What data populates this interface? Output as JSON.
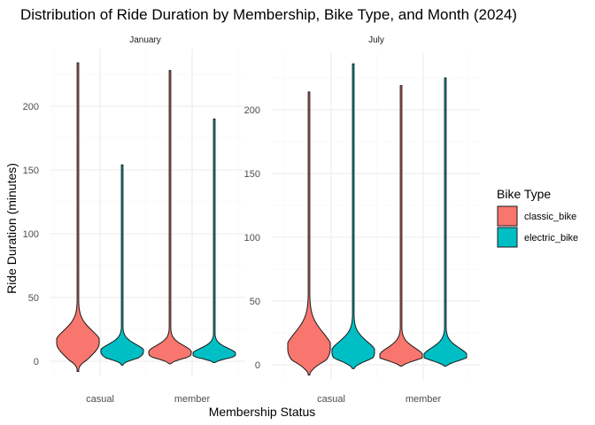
{
  "chart_data": {
    "type": "violin",
    "title": "Distribution of Ride Duration by Membership, Bike Type, and Month (2024)",
    "xlabel": "Membership Status",
    "ylabel": "Ride Duration (minutes)",
    "categories": [
      "casual",
      "member"
    ],
    "legend": {
      "title": "Bike Type",
      "placement": "right",
      "items": [
        {
          "label": "classic_bike",
          "color": "#F8766D"
        },
        {
          "label": "electric_bike",
          "color": "#00BFC4"
        }
      ]
    },
    "panels": [
      {
        "label": "January",
        "ylim": [
          -12,
          245
        ],
        "yticks": [
          0,
          50,
          100,
          150,
          200
        ],
        "violins": [
          {
            "category": "casual",
            "bike": "classic_bike",
            "min": -8,
            "max": 234,
            "peak": 14,
            "spread": 10
          },
          {
            "category": "casual",
            "bike": "electric_bike",
            "min": -3,
            "max": 154,
            "peak": 7,
            "spread": 6
          },
          {
            "category": "member",
            "bike": "classic_bike",
            "min": -2,
            "max": 228,
            "peak": 6,
            "spread": 6
          },
          {
            "category": "member",
            "bike": "electric_bike",
            "min": -1,
            "max": 190,
            "peak": 5,
            "spread": 5
          }
        ]
      },
      {
        "label": "July",
        "ylim": [
          -12,
          245
        ],
        "yticks": [
          0,
          50,
          100,
          150,
          200
        ],
        "violins": [
          {
            "category": "casual",
            "bike": "classic_bike",
            "min": -8,
            "max": 214,
            "peak": 12,
            "spread": 13
          },
          {
            "category": "casual",
            "bike": "electric_bike",
            "min": -3,
            "max": 236,
            "peak": 9,
            "spread": 9
          },
          {
            "category": "member",
            "bike": "classic_bike",
            "min": -1,
            "max": 219,
            "peak": 6,
            "spread": 7
          },
          {
            "category": "member",
            "bike": "electric_bike",
            "min": -1,
            "max": 225,
            "peak": 6,
            "spread": 7
          }
        ]
      }
    ]
  }
}
